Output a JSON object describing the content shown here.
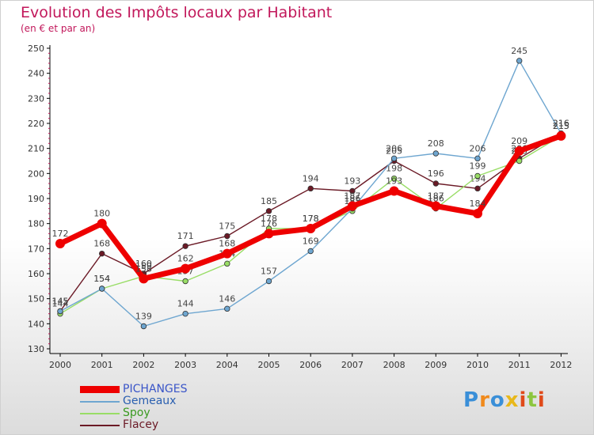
{
  "chart_data": {
    "type": "line",
    "title": "Evolution des Impôts locaux par Habitant",
    "subtitle": "(en € et par an)",
    "xlabel": "",
    "ylabel": "",
    "categories": [
      "2000",
      "2001",
      "2002",
      "2003",
      "2004",
      "2005",
      "2006",
      "2007",
      "2008",
      "2009",
      "2010",
      "2011",
      "2012"
    ],
    "ylim": [
      130,
      250
    ],
    "yticks": [
      130,
      140,
      150,
      160,
      170,
      180,
      190,
      200,
      210,
      220,
      230,
      240,
      250
    ],
    "grid": false,
    "legend_position": "bottom-left",
    "series": [
      {
        "name": "Flacey",
        "color": "#6b1a26",
        "values": [
          145,
          168,
          160,
          171,
          175,
          185,
          194,
          193,
          205,
          196,
          194,
          206,
          216
        ]
      },
      {
        "name": "Spoy",
        "color": "#99dd66",
        "values": [
          144,
          154,
          159,
          157,
          164,
          178,
          178,
          185,
          198,
          186,
          199,
          205,
          215
        ]
      },
      {
        "name": "Gemeaux",
        "color": "#6ea6d0",
        "values": [
          145,
          154,
          139,
          144,
          146,
          157,
          169,
          186,
          206,
          208,
          206,
          245,
          216
        ]
      },
      {
        "name": "PICHANGES",
        "color": "#ee0000",
        "values": [
          172,
          180,
          158,
          162,
          168,
          176,
          178,
          187,
          193,
          187,
          184,
          209,
          215
        ]
      }
    ],
    "legend_order": [
      "PICHANGES",
      "Gemeaux",
      "Spoy",
      "Flacey"
    ]
  },
  "logo": {
    "text": "Proxiti",
    "letters": [
      "P",
      "r",
      "o",
      "x",
      "i",
      "t",
      "i"
    ],
    "colors": [
      "#3a8fd8",
      "#f08a1c",
      "#3a8fd8",
      "#e8b81a",
      "#e04a1a",
      "#8cc63f",
      "#e04a1a"
    ]
  }
}
